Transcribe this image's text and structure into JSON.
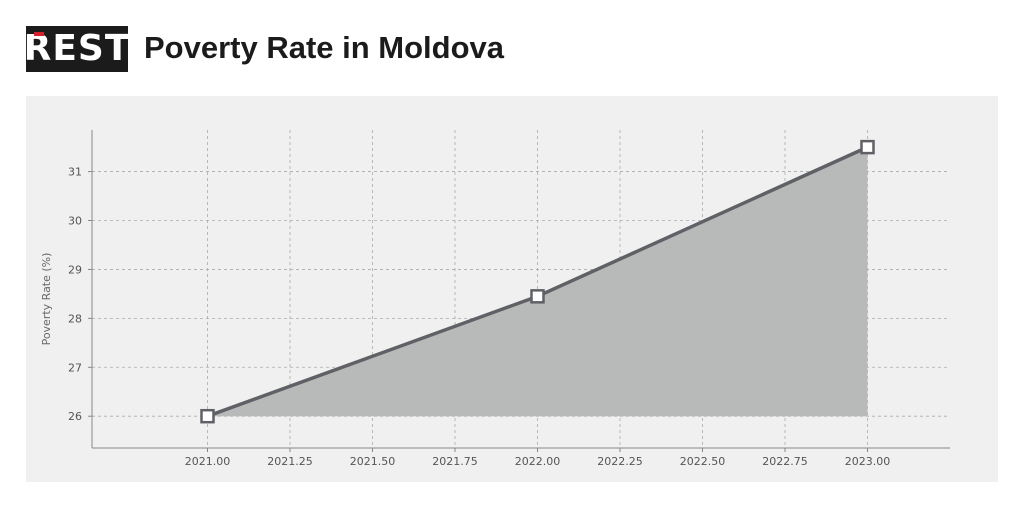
{
  "logo": {
    "text": "REST"
  },
  "chart_data": {
    "type": "area",
    "title": "Poverty Rate in Moldova",
    "xlabel": "",
    "ylabel": "Poverty Rate (%)",
    "x": [
      2021.0,
      2022.0,
      2023.0
    ],
    "y": [
      26.0,
      28.45,
      31.5
    ],
    "xlim": [
      2020.65,
      2023.25
    ],
    "ylim": [
      25.35,
      31.85
    ],
    "xticks": [
      "2021.00",
      "2021.25",
      "2021.50",
      "2021.75",
      "2022.00",
      "2022.25",
      "2022.50",
      "2022.75",
      "2023.00"
    ],
    "yticks": [
      "26",
      "27",
      "28",
      "29",
      "30",
      "31"
    ],
    "area_baseline": 26,
    "grid": true,
    "colors": {
      "line": "#5f6166",
      "fill": "#b8bab9",
      "grid": "#aaaaaa",
      "marker_fill": "#ffffff"
    }
  }
}
